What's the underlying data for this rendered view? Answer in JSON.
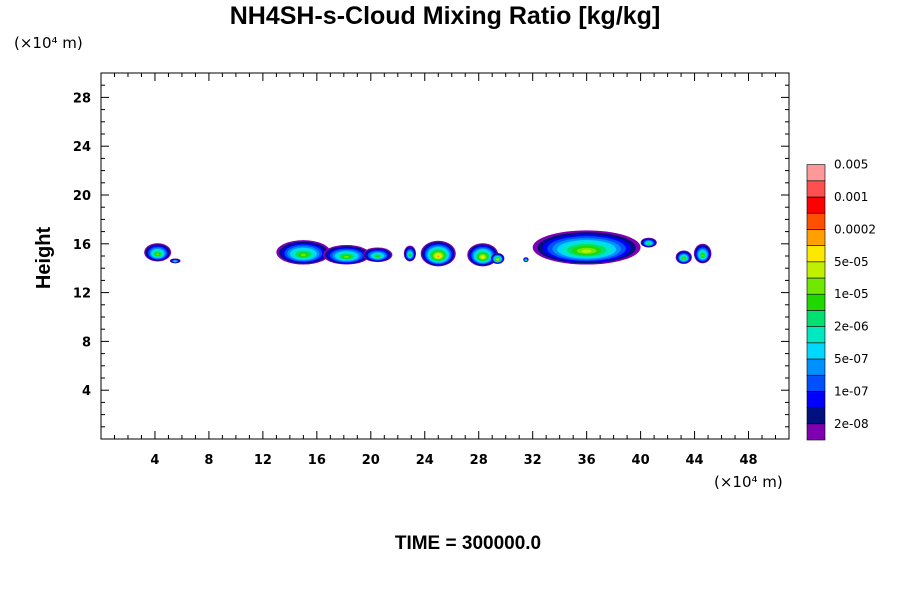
{
  "chart_data": {
    "type": "contour",
    "title": "NH4SH-s-Cloud Mixing Ratio [kg/kg]",
    "ylabel": "Height",
    "x_scale_label": "(×10⁴ m)",
    "y_scale_label": "(×10⁴ m)",
    "xlim": [
      0,
      51
    ],
    "ylim": [
      0,
      30
    ],
    "x_ticks": [
      "4",
      "8",
      "12",
      "16",
      "20",
      "24",
      "28",
      "32",
      "36",
      "40",
      "44",
      "48"
    ],
    "y_ticks": [
      "4",
      "8",
      "12",
      "16",
      "20",
      "24",
      "28"
    ],
    "footer": "TIME = 300000.0",
    "colorbar": {
      "colors": [
        "#7f00b0",
        "#00107f",
        "#0000ff",
        "#0050ff",
        "#0090ff",
        "#00d8ff",
        "#00e8c0",
        "#00e070",
        "#20d800",
        "#70e800",
        "#c0f000",
        "#ffe800",
        "#ffa000",
        "#ff5000",
        "#ff0000",
        "#ff5050",
        "#ff9898"
      ],
      "labels": [
        "2e-08",
        "1e-07",
        "5e-07",
        "2e-06",
        "1e-05",
        "5e-05",
        "0.0002",
        "0.001",
        "0.005"
      ]
    },
    "cloud_blobs": [
      {
        "x": 4.2,
        "y": 15.3,
        "w": 2.0,
        "h": 1.5,
        "level": 9
      },
      {
        "x": 5.5,
        "y": 14.6,
        "w": 0.8,
        "h": 0.4,
        "level": 6
      },
      {
        "x": 15.0,
        "y": 15.3,
        "w": 4.0,
        "h": 2.0,
        "level": 9
      },
      {
        "x": 18.2,
        "y": 15.1,
        "w": 3.5,
        "h": 1.6,
        "level": 9
      },
      {
        "x": 20.5,
        "y": 15.1,
        "w": 2.2,
        "h": 1.2,
        "level": 8
      },
      {
        "x": 22.9,
        "y": 15.2,
        "w": 0.9,
        "h": 1.3,
        "level": 8
      },
      {
        "x": 25.0,
        "y": 15.2,
        "w": 2.6,
        "h": 2.1,
        "level": 12
      },
      {
        "x": 28.3,
        "y": 15.1,
        "w": 2.3,
        "h": 1.9,
        "level": 11
      },
      {
        "x": 29.4,
        "y": 14.8,
        "w": 1.0,
        "h": 0.9,
        "level": 11
      },
      {
        "x": 31.5,
        "y": 14.7,
        "w": 0.4,
        "h": 0.4,
        "level": 7
      },
      {
        "x": 36.0,
        "y": 15.7,
        "w": 8.0,
        "h": 2.8,
        "level": 10
      },
      {
        "x": 40.6,
        "y": 16.1,
        "w": 1.2,
        "h": 0.8,
        "level": 8
      },
      {
        "x": 43.2,
        "y": 14.9,
        "w": 1.2,
        "h": 1.1,
        "level": 9
      },
      {
        "x": 44.6,
        "y": 15.2,
        "w": 1.3,
        "h": 1.6,
        "level": 9
      }
    ]
  }
}
